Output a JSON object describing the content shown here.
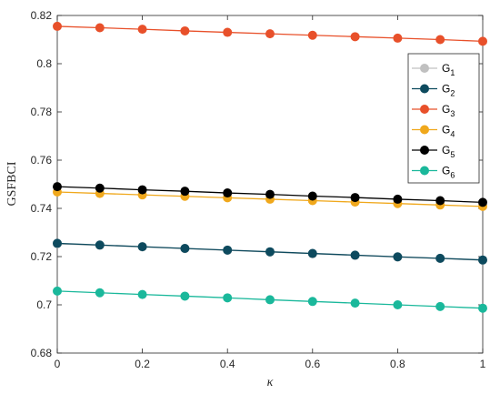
{
  "chart_data": {
    "type": "line",
    "xlabel": "κ",
    "ylabel": "GSFBCI",
    "xlim": [
      0,
      1
    ],
    "ylim": [
      0.68,
      0.82
    ],
    "x_ticks": [
      0,
      0.2,
      0.4,
      0.6,
      0.8,
      1
    ],
    "x_tick_labels": [
      "0",
      "0.2",
      "0.4",
      "0.6",
      "0.8",
      "1"
    ],
    "y_ticks": [
      0.68,
      0.7,
      0.72,
      0.74,
      0.76,
      0.78,
      0.8,
      0.82
    ],
    "y_tick_labels": [
      "0.68",
      "0.7",
      "0.72",
      "0.74",
      "0.76",
      "0.78",
      "0.8",
      "0.82"
    ],
    "grid": false,
    "legend_position": "top-right",
    "x": [
      0,
      0.1,
      0.2,
      0.3,
      0.4,
      0.5,
      0.6,
      0.7,
      0.8,
      0.9,
      1
    ],
    "series": [
      {
        "name": "G",
        "sub": "1",
        "color": "#c0c0c0",
        "values": [
          0.7253,
          0.7247,
          0.724,
          0.7233,
          0.7226,
          0.7219,
          0.7212,
          0.7205,
          0.7198,
          0.7192,
          0.7185
        ]
      },
      {
        "name": "G",
        "sub": "2",
        "color": "#0d4a5e",
        "values": [
          0.7255,
          0.7248,
          0.7241,
          0.7234,
          0.7227,
          0.722,
          0.7213,
          0.7206,
          0.7199,
          0.7193,
          0.7186
        ]
      },
      {
        "name": "G",
        "sub": "3",
        "color": "#e8502a",
        "values": [
          0.8155,
          0.8149,
          0.8143,
          0.8136,
          0.813,
          0.8124,
          0.8118,
          0.8112,
          0.8106,
          0.81,
          0.8093
        ]
      },
      {
        "name": "G",
        "sub": "4",
        "color": "#f0a81c",
        "values": [
          0.7468,
          0.7462,
          0.7456,
          0.745,
          0.7444,
          0.7438,
          0.7432,
          0.7426,
          0.742,
          0.7414,
          0.7408
        ]
      },
      {
        "name": "G",
        "sub": "5",
        "color": "#000000",
        "values": [
          0.749,
          0.7484,
          0.7477,
          0.7471,
          0.7464,
          0.7458,
          0.7451,
          0.7445,
          0.7438,
          0.7432,
          0.7425
        ]
      },
      {
        "name": "G",
        "sub": "6",
        "color": "#1ab89b",
        "values": [
          0.7057,
          0.705,
          0.7043,
          0.7036,
          0.7029,
          0.7021,
          0.7014,
          0.7007,
          0.7,
          0.6993,
          0.6986
        ]
      }
    ]
  }
}
